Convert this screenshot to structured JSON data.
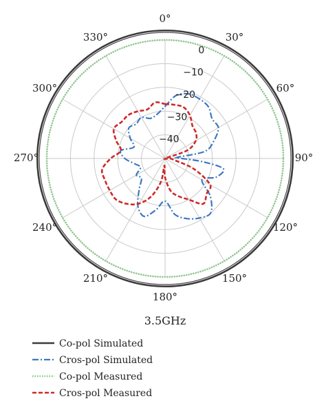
{
  "chart_data": {
    "type": "polar-line",
    "caption": "3.5GHz",
    "angle_ticks": [
      "0°",
      "30°",
      "60°",
      "90°",
      "120°",
      "150°",
      "180°",
      "210°",
      "240°",
      "270°",
      "300°",
      "330°"
    ],
    "angle_tick_values": [
      0,
      30,
      60,
      90,
      120,
      150,
      180,
      210,
      240,
      270,
      300,
      330
    ],
    "radial_ticks": [
      "0",
      "−10",
      "−20",
      "−30",
      "−40"
    ],
    "radial_tick_values": [
      0,
      -10,
      -20,
      -30,
      -40
    ],
    "r_range": [
      -50,
      0
    ],
    "angle_direction": "clockwise",
    "zero_location": "top",
    "grid": true,
    "legend_position": "bottom-left",
    "series": [
      {
        "name": "Co-pol Simulated",
        "color": "#3a3a3a",
        "style": "solid",
        "theta": [
          0,
          30,
          60,
          90,
          120,
          150,
          180,
          210,
          240,
          270,
          300,
          330,
          360
        ],
        "r": [
          4,
          4,
          4,
          4,
          4,
          4,
          4,
          4,
          4,
          4,
          4,
          4,
          4
        ]
      },
      {
        "name": "Cros-pol Simulated",
        "color": "#3a78c0",
        "style": "dashdot",
        "theta": [
          0,
          10,
          20,
          30,
          40,
          50,
          60,
          70,
          80,
          85,
          90,
          95,
          100,
          110,
          120,
          130,
          140,
          150,
          160,
          170,
          180,
          190,
          200,
          210,
          220,
          230,
          240,
          250,
          260,
          270,
          280,
          290,
          300,
          310,
          320,
          330,
          340,
          350,
          360
        ],
        "r": [
          -28,
          -23,
          -21,
          -21,
          -21.5,
          -24,
          -24,
          -28,
          -33,
          -45,
          -43,
          -34,
          -25,
          -27,
          -32,
          -25,
          -20,
          -21,
          -23,
          -26,
          -32,
          -28,
          -24,
          -27,
          -33,
          -37,
          -36,
          -39,
          -37,
          -33,
          -31,
          -36,
          -33,
          -30,
          -31,
          -30,
          -32,
          -31,
          -28
        ]
      },
      {
        "name": "Co-pol Measured",
        "color": "#7cc87c",
        "style": "dotted",
        "theta": [
          0,
          30,
          60,
          90,
          120,
          150,
          180,
          210,
          240,
          270,
          300,
          330,
          360
        ],
        "r": [
          0,
          0,
          0,
          0,
          0,
          0,
          0,
          0,
          0,
          0,
          0,
          0,
          0
        ]
      },
      {
        "name": "Cros-pol Measured",
        "color": "#cc2a2a",
        "style": "dashed",
        "theta": [
          0,
          10,
          20,
          30,
          40,
          50,
          60,
          70,
          80,
          90,
          100,
          110,
          120,
          130,
          140,
          150,
          160,
          170,
          180,
          185,
          190,
          200,
          210,
          220,
          230,
          240,
          250,
          260,
          270,
          280,
          290,
          300,
          310,
          320,
          330,
          340,
          350,
          360
        ],
        "r": [
          -27,
          -27,
          -27,
          -29,
          -32,
          -33,
          -35,
          -40,
          -50,
          -48,
          -46,
          -37,
          -28,
          -27,
          -25,
          -30,
          -33,
          -36,
          -42,
          -47,
          -40,
          -33,
          -28,
          -25,
          -23,
          -23,
          -23,
          -23,
          -27,
          -31,
          -28,
          -25,
          -26,
          -26,
          -27,
          -28,
          -26,
          -27
        ]
      }
    ]
  }
}
